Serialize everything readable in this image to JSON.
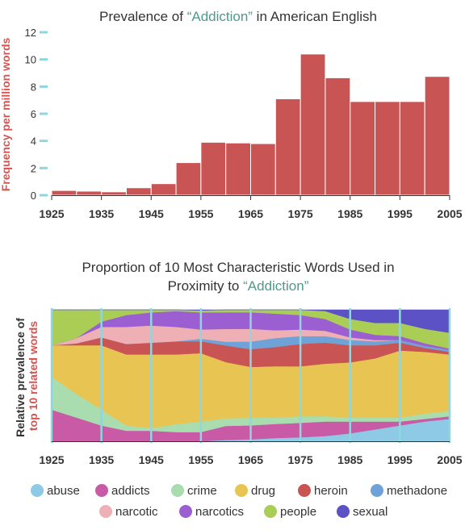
{
  "colors": {
    "accent": "#4e9a8c",
    "ylabel_accent": "#d9534f",
    "tick_mark": "#8fd6df",
    "bar": "#c95454",
    "text": "#333333"
  },
  "chart_data": [
    {
      "type": "bar",
      "title_prefix": "Prevalence of ",
      "title_highlight": "“Addiction”",
      "title_suffix": " in American English",
      "ylabel": "Frequency per million words",
      "xlabel": "",
      "ylim": [
        0,
        12
      ],
      "yticks": [
        "0",
        "2",
        "4",
        "6",
        "8",
        "10",
        "12"
      ],
      "xtick_labels": [
        "1925",
        "1935",
        "1945",
        "1955",
        "1965",
        "1975",
        "1985",
        "1995",
        "2005"
      ],
      "bins": [
        {
          "start": 1925,
          "end": 1930,
          "value": 0.35
        },
        {
          "start": 1930,
          "end": 1935,
          "value": 0.3
        },
        {
          "start": 1935,
          "end": 1940,
          "value": 0.25
        },
        {
          "start": 1940,
          "end": 1945,
          "value": 0.55
        },
        {
          "start": 1945,
          "end": 1950,
          "value": 0.85
        },
        {
          "start": 1950,
          "end": 1955,
          "value": 2.4
        },
        {
          "start": 1955,
          "end": 1960,
          "value": 3.9
        },
        {
          "start": 1960,
          "end": 1965,
          "value": 3.85
        },
        {
          "start": 1965,
          "end": 1970,
          "value": 3.8
        },
        {
          "start": 1970,
          "end": 1975,
          "value": 7.1
        },
        {
          "start": 1975,
          "end": 1980,
          "value": 10.4
        },
        {
          "start": 1980,
          "end": 1985,
          "value": 8.65
        },
        {
          "start": 1985,
          "end": 1990,
          "value": 6.9
        },
        {
          "start": 1990,
          "end": 1995,
          "value": 6.9
        },
        {
          "start": 1995,
          "end": 2000,
          "value": 6.9
        },
        {
          "start": 2000,
          "end": 2005,
          "value": 8.75
        }
      ]
    },
    {
      "type": "area",
      "stacked": "100%",
      "title_line1": "Proportion of 10 Most Characteristic Words Used in",
      "title_line2_prefix": "Proximity to ",
      "title_line2_highlight": "“Addiction”",
      "ylabel_line1": "Relative prevalence of",
      "ylabel_line2": "top 10 related words",
      "xtick_labels": [
        "1925",
        "1935",
        "1945",
        "1955",
        "1965",
        "1975",
        "1985",
        "1995",
        "2005"
      ],
      "x": [
        1925,
        1930,
        1935,
        1940,
        1945,
        1950,
        1955,
        1960,
        1965,
        1970,
        1975,
        1980,
        1985,
        1990,
        1995,
        2000,
        2005
      ],
      "legend_position": "bottom",
      "series": [
        {
          "name": "abuse",
          "color": "#8ecae6",
          "values": [
            0,
            0,
            0,
            0,
            0,
            0,
            0,
            1,
            1.5,
            2.5,
            3,
            4,
            6,
            9,
            12,
            15,
            17
          ]
        },
        {
          "name": "addicts",
          "color": "#c95ba6",
          "values": [
            24,
            18,
            12,
            8,
            8,
            7,
            7,
            11,
            11,
            11,
            11,
            11,
            9,
            6,
            3,
            2,
            2
          ]
        },
        {
          "name": "crime",
          "color": "#a9dcae",
          "values": [
            25,
            18,
            12,
            4,
            2,
            6,
            8,
            6,
            6,
            5,
            5,
            4,
            3,
            3,
            3,
            4,
            4
          ]
        },
        {
          "name": "drug",
          "color": "#e8c552",
          "values": [
            24,
            37,
            49,
            54,
            56,
            53,
            52,
            44,
            40,
            40,
            38,
            40,
            42,
            45,
            51,
            47,
            43
          ]
        },
        {
          "name": "heroin",
          "color": "#c95454",
          "values": [
            0,
            1.5,
            6,
            8,
            9,
            10,
            9,
            13,
            14,
            15,
            17,
            16,
            13,
            10,
            6,
            3,
            2
          ]
        },
        {
          "name": "methadone",
          "color": "#6fa3d8",
          "values": [
            0,
            0,
            0,
            0,
            0,
            0,
            2,
            3,
            6,
            7,
            6,
            5,
            4,
            3,
            2,
            1.5,
            1.5
          ]
        },
        {
          "name": "narcotic",
          "color": "#eeb0b4",
          "values": [
            0,
            4,
            8,
            13,
            13,
            11,
            7,
            10,
            10,
            6,
            5,
            4,
            2,
            1,
            0,
            0,
            0
          ]
        },
        {
          "name": "narcotics",
          "color": "#9b5fd1",
          "values": [
            0,
            0,
            4,
            9,
            10,
            12,
            13,
            13,
            13,
            13,
            11,
            9,
            6,
            4,
            3,
            2,
            1
          ]
        },
        {
          "name": "people",
          "color": "#aacd55",
          "values": [
            27,
            21.5,
            9,
            4,
            2,
            1,
            1.5,
            2,
            2,
            3,
            4,
            6,
            8,
            9,
            10,
            11,
            12
          ]
        },
        {
          "name": "sexual",
          "color": "#5c52c6",
          "values": [
            0,
            0,
            0,
            0,
            0,
            0,
            0.5,
            0,
            0,
            0,
            0,
            1,
            7,
            10,
            10,
            14.5,
            17.5
          ]
        }
      ]
    }
  ]
}
